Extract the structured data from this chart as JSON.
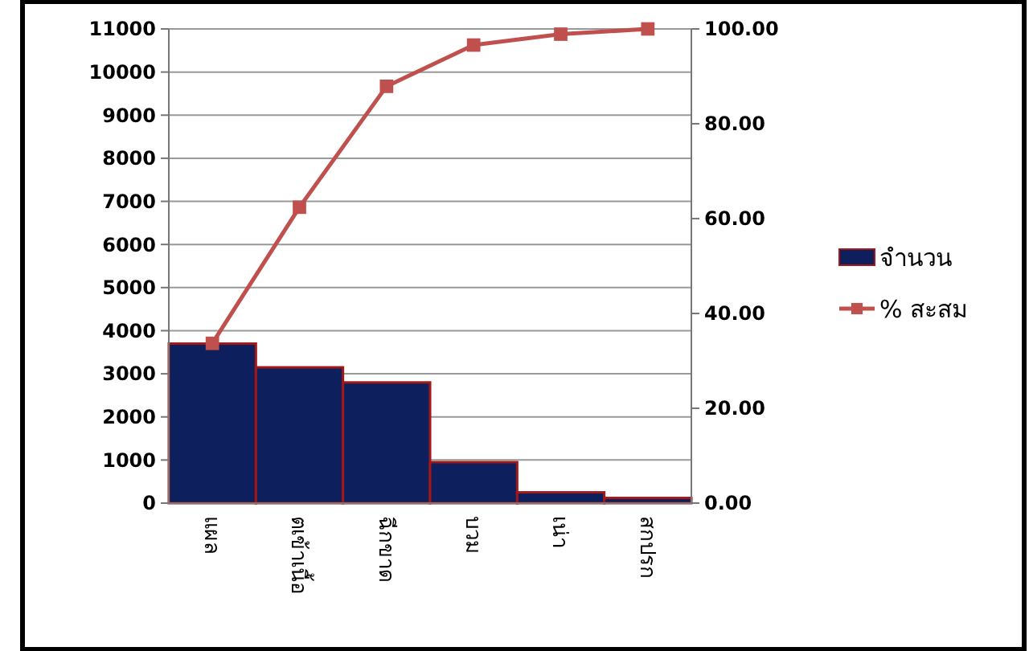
{
  "chart_data": {
    "type": "bar",
    "categories": [
      "แผล",
      "ตเข้าเนื้อ",
      "ฉีกขาด",
      "บวม",
      "เน่า",
      "สกปรก"
    ],
    "series": [
      {
        "name": "จำนวน",
        "color": "#0d1f5c",
        "values": [
          3700,
          3150,
          2800,
          950,
          250,
          120
        ]
      },
      {
        "name": "% สะสม",
        "type": "line",
        "axis": "y2",
        "color": "#c0504d",
        "values": [
          33.7,
          62.4,
          87.9,
          96.6,
          98.9,
          100
        ]
      }
    ],
    "ylim": [
      0,
      11000
    ],
    "yticks": [
      0,
      1000,
      2000,
      3000,
      4000,
      5000,
      6000,
      7000,
      8000,
      9000,
      10000,
      11000
    ],
    "y2lim": [
      0,
      100
    ],
    "y2ticks": [
      {
        "value": 0,
        "label": "0.00"
      },
      {
        "value": 20,
        "label": "20.00"
      },
      {
        "value": 40,
        "label": "40.00"
      },
      {
        "value": 60,
        "label": "60.00"
      },
      {
        "value": 80,
        "label": "80.00"
      },
      {
        "value": 100,
        "label": "100.00"
      }
    ],
    "grid": "y",
    "legend": "right",
    "marker": "square"
  }
}
